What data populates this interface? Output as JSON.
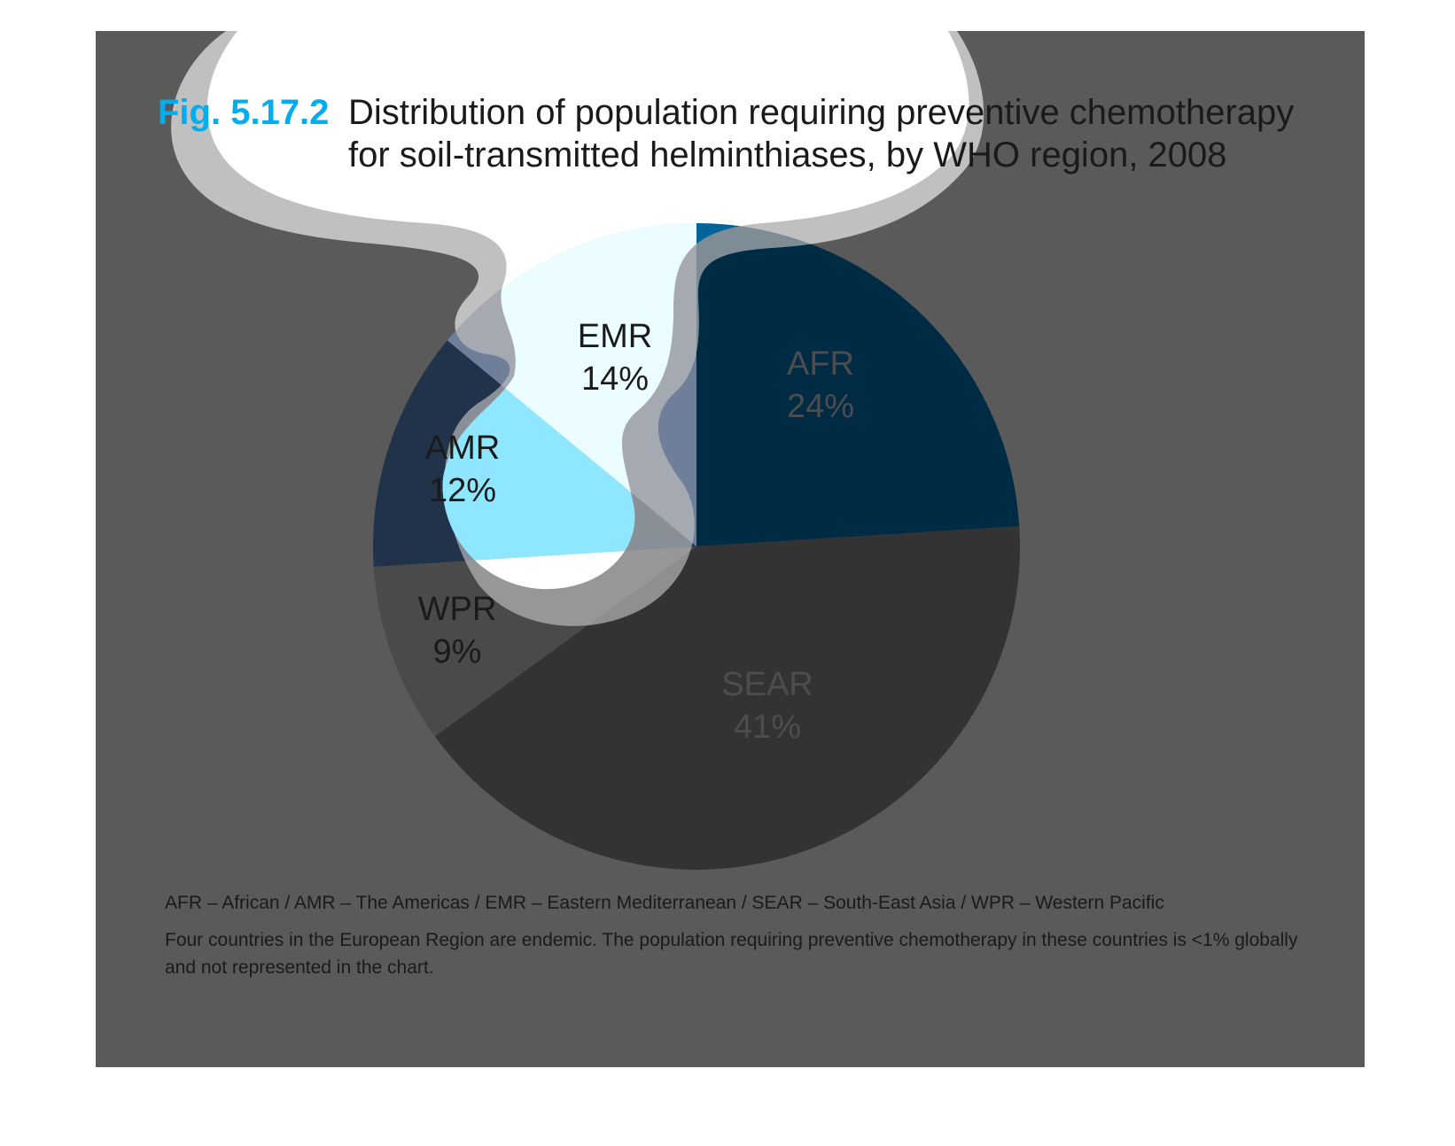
{
  "figure": {
    "number": "Fig. 5.17.2",
    "title_line1": "Distribution of population requiring preventive chemotherapy",
    "title_line2": "for soil-transmitted helminthiases, by WHO region, 2008"
  },
  "colors": {
    "panel": "#5a5a5a",
    "fig_number": "#00aeef",
    "bubble_fill": "#ffffff",
    "bubble_outline": "#c0c0c0"
  },
  "chart_data": {
    "type": "pie",
    "start_angle_deg": 0,
    "direction": "clockwise",
    "slices": [
      {
        "key": "AFR",
        "label": "AFR",
        "value": 24,
        "pct_label": "24%",
        "color": "#002b45",
        "label_color": "#4d4d4d"
      },
      {
        "key": "SEAR",
        "label": "SEAR",
        "value": 41,
        "pct_label": "41%",
        "color": "#333333",
        "label_color": "#4d4d4d"
      },
      {
        "key": "WPR",
        "label": "WPR",
        "value": 9,
        "pct_label": "9%",
        "color": "#4a4a4a",
        "label_color": "#1a1a1a"
      },
      {
        "key": "AMR",
        "label": "AMR",
        "value": 12,
        "pct_label": "12%",
        "color": "#21334a",
        "label_color": "#1a1a1a"
      },
      {
        "key": "EMR",
        "label": "EMR",
        "value": 14,
        "pct_label": "14%",
        "color": "#6f7f99",
        "label_color": "#1a1a1a"
      }
    ]
  },
  "footnotes": {
    "legend": "AFR – African / AMR – The Americas / EMR – Eastern Mediterranean / SEAR – South-East Asia / WPR – Western Pacific",
    "note_line1": "Four countries in the European Region are endemic. The population requiring preventive chemotherapy in these countries is <1% globally",
    "note_line2": "and not represented in the chart."
  }
}
